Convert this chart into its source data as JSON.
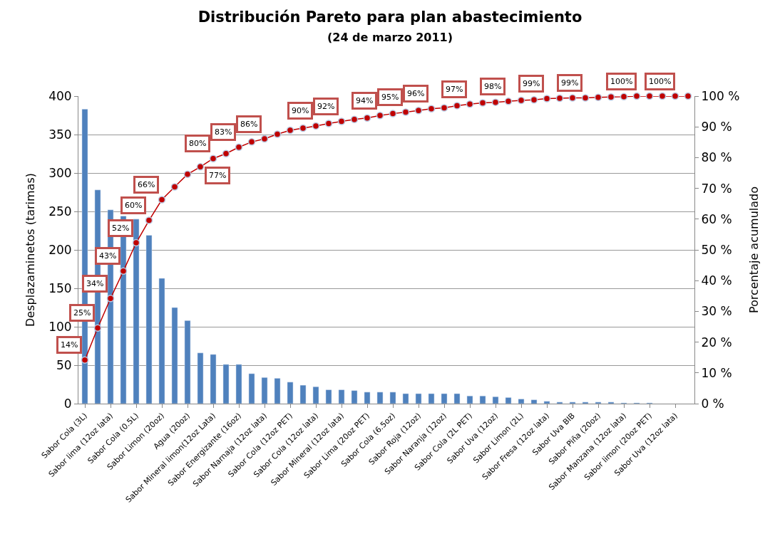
{
  "chart_data": {
    "type": "bar",
    "title": "Distribución Pareto para plan abastecimiento",
    "subtitle": "(24 de marzo 2011)",
    "ylabel": "Desplazaminetos (tarimas)",
    "y2label": "Porcentaje acumulado",
    "categories": [
      "Sabor Cola (3L)",
      null,
      "Sabor lima (12oz lata)",
      null,
      "Sabor Cola (0.5L)",
      null,
      "Sabor Limon (20oz)",
      null,
      "Agua (20oz)",
      null,
      "Sabor Mineral limon(12oz Lata)",
      null,
      "Sabor Energizante (16oz)",
      null,
      "Sabor Narnaja (12oz lata)",
      null,
      "Sabor Cola (12oz PET)",
      null,
      "Sabor Cola (12oz lata)",
      null,
      "Sabor Mineral (12oz lata)",
      null,
      "Sabor Lima (20oz PET)",
      null,
      "Sabor Cola (6.5oz)",
      null,
      "Sabor Roja (12oz)",
      null,
      "Sabor Naranja (12oz)",
      null,
      "Sabor Cola (2L PET)",
      null,
      "Sabor Uva (12oz)",
      null,
      "Sabor Limon (2L)",
      null,
      "Sabor Fresa (12oz lata)",
      null,
      "Sabor Uva BIB",
      null,
      "Sabor Piña (20oz)",
      null,
      "Sabor Manzana (12oz lata)",
      null,
      "Sabor limon (20oz PET)",
      null,
      "Sabor Uva (12oz lata)",
      null
    ],
    "series": [
      {
        "color": "#4f81bd",
        "values": [
          383,
          278,
          252,
          244,
          240,
          219,
          163,
          125,
          108,
          66,
          64,
          51,
          51,
          39,
          34,
          33,
          28,
          24,
          22,
          18,
          18,
          17,
          15,
          15,
          15,
          13,
          13,
          13,
          13,
          13,
          10,
          10,
          9,
          8,
          6,
          5,
          3,
          2,
          2,
          2,
          2,
          2,
          1,
          1,
          1,
          null,
          null,
          null
        ]
      },
      {
        "type": "line",
        "axis": "y2",
        "color": "#c00000",
        "marker": "circle",
        "values": [
          14.2,
          24.6,
          34.2,
          43.1,
          52.3,
          59.6,
          66.3,
          70.5,
          74.6,
          77.0,
          79.7,
          81.3,
          83.4,
          85.1,
          86.1,
          87.6,
          88.9,
          89.6,
          90.3,
          91.1,
          91.8,
          92.4,
          92.9,
          93.7,
          94.3,
          94.8,
          95.3,
          95.9,
          96.2,
          96.9,
          97.4,
          97.8,
          98.0,
          98.3,
          98.6,
          98.8,
          99.2,
          99.3,
          99.4,
          99.4,
          99.6,
          99.7,
          99.8,
          100,
          100,
          100,
          100,
          100
        ],
        "value_labels": [
          "14%",
          "25%",
          "34%",
          "43%",
          "52%",
          "60%",
          "66%",
          null,
          null,
          "77%",
          "80%",
          null,
          "83%",
          null,
          "86%",
          null,
          null,
          null,
          "90%",
          null,
          "92%",
          null,
          null,
          "94%",
          null,
          "95%",
          null,
          "96%",
          null,
          null,
          "97%",
          null,
          null,
          "98%",
          null,
          null,
          "99%",
          null,
          null,
          "99%",
          null,
          null,
          null,
          "100%",
          null,
          null,
          "100%",
          null
        ]
      }
    ],
    "ylim": [
      0,
      400
    ],
    "yticks": [
      0,
      50,
      100,
      150,
      200,
      250,
      300,
      350,
      400
    ],
    "y2lim": [
      0,
      100
    ],
    "y2ticks": [
      {
        "value": 0,
        "label": "0 %"
      },
      {
        "value": 10,
        "label": "10 %"
      },
      {
        "value": 20,
        "label": "20 %"
      },
      {
        "value": 30,
        "label": "30 %"
      },
      {
        "value": 40,
        "label": "40 %"
      },
      {
        "value": 50,
        "label": "50 %"
      },
      {
        "value": 60,
        "label": "60 %"
      },
      {
        "value": 70,
        "label": "70 %"
      },
      {
        "value": 80,
        "label": "80 %"
      },
      {
        "value": 90,
        "label": "90 %"
      },
      {
        "value": 100,
        "label": "100 %"
      }
    ],
    "grid": "y"
  }
}
